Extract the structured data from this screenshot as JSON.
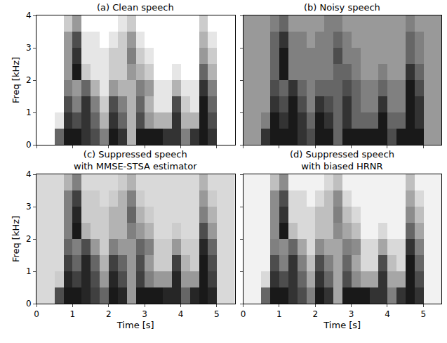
{
  "chart_data": [
    {
      "type": "heatmap",
      "title": "(a) Clean speech",
      "ylabel": "Freq [kHz]",
      "tick_labels": "y",
      "color": "#000000",
      "xlim": [
        0,
        5.5
      ],
      "xticks": [
        0,
        1,
        2,
        3,
        4,
        5
      ],
      "ylim": [
        0,
        4
      ],
      "yticks": [
        0,
        1,
        2,
        3,
        4
      ],
      "zlim": [
        0,
        1
      ],
      "x": [
        0.125,
        0.375,
        0.625,
        0.875,
        1.125,
        1.375,
        1.625,
        1.875,
        2.125,
        2.375,
        2.625,
        2.875,
        3.125,
        3.375,
        3.625,
        3.875,
        4.125,
        4.375,
        4.625,
        4.875,
        5.125,
        5.375
      ],
      "y": [
        0.25,
        0.75,
        1.25,
        1.75,
        2.25,
        2.75,
        3.25,
        3.75
      ],
      "cells": [
        [
          0,
          0,
          0.6,
          0.9,
          0.9,
          0.8,
          0.7,
          0.5,
          0.9,
          0.8,
          0.3,
          0.9,
          0.9,
          0.9,
          0.8,
          0.8,
          0.5,
          0.8,
          0.9,
          0.8,
          0,
          0
        ],
        [
          0,
          0,
          0.1,
          0.8,
          0.7,
          0.8,
          0.6,
          0.3,
          0.8,
          0.6,
          0.3,
          0.7,
          0.4,
          0.3,
          0.3,
          0.8,
          0.3,
          0.3,
          0.9,
          0.7,
          0,
          0
        ],
        [
          0,
          0,
          0,
          0.7,
          0.5,
          0.8,
          0.5,
          0.2,
          0.7,
          0.5,
          0.3,
          0.6,
          0.3,
          0.1,
          0.1,
          0.7,
          0.2,
          0.1,
          0.9,
          0.6,
          0,
          0
        ],
        [
          0,
          0,
          0,
          0.5,
          0.4,
          0.6,
          0.3,
          0.1,
          0.4,
          0.3,
          0.3,
          0.5,
          0.4,
          0.1,
          0.1,
          0.3,
          0.1,
          0.1,
          0.8,
          0.5,
          0,
          0
        ],
        [
          0,
          0,
          0,
          0.4,
          0.9,
          0.2,
          0.1,
          0.1,
          0.2,
          0.2,
          0.4,
          0.3,
          0.2,
          0,
          0,
          0.1,
          0,
          0,
          0.6,
          0.3,
          0,
          0
        ],
        [
          0,
          0,
          0,
          0.4,
          0.8,
          0.1,
          0.1,
          0.1,
          0.2,
          0.2,
          0.5,
          0.2,
          0.1,
          0,
          0,
          0,
          0,
          0,
          0.4,
          0.2,
          0,
          0
        ],
        [
          0,
          0,
          0,
          0.4,
          0.7,
          0.1,
          0.1,
          0,
          0.1,
          0.2,
          0.4,
          0.1,
          0,
          0,
          0,
          0,
          0,
          0,
          0.3,
          0.1,
          0,
          0
        ],
        [
          0,
          0,
          0,
          0.2,
          0.4,
          0,
          0,
          0,
          0,
          0.1,
          0.2,
          0,
          0,
          0,
          0,
          0,
          0,
          0,
          0.2,
          0,
          0,
          0
        ]
      ]
    },
    {
      "type": "heatmap",
      "title": "(b) Noisy speech",
      "tick_labels": false,
      "color": "#000000",
      "xlim": [
        0,
        5.5
      ],
      "xticks": [
        0,
        1,
        2,
        3,
        4,
        5
      ],
      "ylim": [
        0,
        4
      ],
      "yticks": [
        0,
        1,
        2,
        3,
        4
      ],
      "zlim": [
        0,
        1
      ],
      "x": [
        0.125,
        0.375,
        0.625,
        0.875,
        1.125,
        1.375,
        1.625,
        1.875,
        2.125,
        2.375,
        2.625,
        2.875,
        3.125,
        3.375,
        3.625,
        3.875,
        4.125,
        4.375,
        4.625,
        4.875,
        5.125,
        5.375
      ],
      "y": [
        0.25,
        0.75,
        1.25,
        1.75,
        2.25,
        2.75,
        3.25,
        3.75
      ],
      "cells": [
        [
          0.4,
          0.4,
          0.8,
          0.9,
          0.9,
          0.9,
          0.8,
          0.7,
          0.9,
          0.9,
          0.6,
          0.9,
          0.9,
          0.9,
          0.9,
          0.9,
          0.7,
          0.9,
          0.9,
          0.9,
          0.4,
          0.4
        ],
        [
          0.4,
          0.4,
          0.5,
          0.9,
          0.8,
          0.9,
          0.8,
          0.6,
          0.9,
          0.8,
          0.6,
          0.8,
          0.6,
          0.6,
          0.6,
          0.9,
          0.6,
          0.6,
          0.9,
          0.8,
          0.4,
          0.4
        ],
        [
          0.4,
          0.4,
          0.4,
          0.8,
          0.7,
          0.9,
          0.7,
          0.5,
          0.8,
          0.7,
          0.6,
          0.8,
          0.6,
          0.5,
          0.5,
          0.8,
          0.5,
          0.5,
          0.9,
          0.8,
          0.4,
          0.4
        ],
        [
          0.4,
          0.4,
          0.4,
          0.7,
          0.6,
          0.8,
          0.6,
          0.5,
          0.6,
          0.6,
          0.6,
          0.7,
          0.6,
          0.5,
          0.5,
          0.6,
          0.5,
          0.5,
          0.9,
          0.7,
          0.4,
          0.4
        ],
        [
          0.4,
          0.4,
          0.4,
          0.6,
          0.9,
          0.5,
          0.5,
          0.5,
          0.5,
          0.5,
          0.6,
          0.6,
          0.5,
          0.4,
          0.4,
          0.5,
          0.4,
          0.4,
          0.8,
          0.6,
          0.4,
          0.4
        ],
        [
          0.4,
          0.4,
          0.4,
          0.6,
          0.9,
          0.5,
          0.5,
          0.5,
          0.5,
          0.5,
          0.7,
          0.5,
          0.5,
          0.4,
          0.4,
          0.4,
          0.4,
          0.4,
          0.6,
          0.5,
          0.4,
          0.4
        ],
        [
          0.4,
          0.4,
          0.4,
          0.6,
          0.8,
          0.5,
          0.5,
          0.4,
          0.5,
          0.5,
          0.6,
          0.5,
          0.4,
          0.4,
          0.4,
          0.4,
          0.4,
          0.4,
          0.6,
          0.5,
          0.4,
          0.4
        ],
        [
          0.4,
          0.4,
          0.4,
          0.5,
          0.6,
          0.4,
          0.4,
          0.4,
          0.4,
          0.5,
          0.5,
          0.4,
          0.4,
          0.4,
          0.4,
          0.4,
          0.4,
          0.4,
          0.5,
          0.4,
          0.4,
          0.4
        ]
      ]
    },
    {
      "type": "heatmap",
      "title": "(c) Suppressed speech\nwith MMSE-STSA estimator",
      "xlabel": "Time [s]",
      "ylabel": "Freq [kHz]",
      "color": "#000000",
      "xlim": [
        0,
        5.5
      ],
      "xticks": [
        0,
        1,
        2,
        3,
        4,
        5
      ],
      "ylim": [
        0,
        4
      ],
      "yticks": [
        0,
        1,
        2,
        3,
        4
      ],
      "zlim": [
        0,
        1
      ],
      "x": [
        0.125,
        0.375,
        0.625,
        0.875,
        1.125,
        1.375,
        1.625,
        1.875,
        2.125,
        2.375,
        2.625,
        2.875,
        3.125,
        3.375,
        3.625,
        3.875,
        4.125,
        4.375,
        4.625,
        4.875,
        5.125,
        5.375
      ],
      "y": [
        0.25,
        0.75,
        1.25,
        1.75,
        2.25,
        2.75,
        3.25,
        3.75
      ],
      "cells": [
        [
          0.15,
          0.15,
          0.7,
          0.9,
          0.9,
          0.85,
          0.75,
          0.6,
          0.9,
          0.85,
          0.4,
          0.9,
          0.9,
          0.9,
          0.85,
          0.85,
          0.6,
          0.85,
          0.9,
          0.85,
          0.15,
          0.15
        ],
        [
          0.15,
          0.15,
          0.2,
          0.85,
          0.75,
          0.85,
          0.7,
          0.4,
          0.85,
          0.7,
          0.4,
          0.75,
          0.5,
          0.4,
          0.4,
          0.85,
          0.4,
          0.4,
          0.9,
          0.75,
          0.15,
          0.15
        ],
        [
          0.15,
          0.15,
          0.15,
          0.75,
          0.6,
          0.85,
          0.6,
          0.3,
          0.75,
          0.6,
          0.4,
          0.7,
          0.4,
          0.2,
          0.2,
          0.75,
          0.3,
          0.2,
          0.9,
          0.7,
          0.15,
          0.15
        ],
        [
          0.15,
          0.15,
          0.15,
          0.6,
          0.5,
          0.7,
          0.4,
          0.2,
          0.5,
          0.4,
          0.4,
          0.6,
          0.5,
          0.2,
          0.2,
          0.4,
          0.2,
          0.2,
          0.85,
          0.6,
          0.15,
          0.15
        ],
        [
          0.15,
          0.15,
          0.15,
          0.5,
          0.9,
          0.3,
          0.2,
          0.2,
          0.3,
          0.3,
          0.5,
          0.4,
          0.3,
          0.15,
          0.15,
          0.2,
          0.15,
          0.15,
          0.7,
          0.4,
          0.15,
          0.15
        ],
        [
          0.15,
          0.15,
          0.15,
          0.5,
          0.85,
          0.2,
          0.2,
          0.2,
          0.3,
          0.3,
          0.6,
          0.3,
          0.2,
          0.15,
          0.15,
          0.15,
          0.15,
          0.15,
          0.5,
          0.3,
          0.15,
          0.15
        ],
        [
          0.15,
          0.15,
          0.15,
          0.5,
          0.75,
          0.2,
          0.2,
          0.15,
          0.2,
          0.3,
          0.5,
          0.2,
          0.15,
          0.15,
          0.15,
          0.15,
          0.15,
          0.15,
          0.4,
          0.2,
          0.15,
          0.15
        ],
        [
          0.15,
          0.15,
          0.15,
          0.3,
          0.5,
          0.15,
          0.15,
          0.15,
          0.15,
          0.2,
          0.3,
          0.15,
          0.15,
          0.15,
          0.15,
          0.15,
          0.15,
          0.15,
          0.3,
          0.15,
          0.15,
          0.15
        ]
      ]
    },
    {
      "type": "heatmap",
      "title": "(d) Suppressed speech\nwith biased HRNR",
      "xlabel": "Time [s]",
      "tick_labels": "x",
      "color": "#000000",
      "xlim": [
        0,
        5.5
      ],
      "xticks": [
        0,
        1,
        2,
        3,
        4,
        5
      ],
      "ylim": [
        0,
        4
      ],
      "yticks": [
        0,
        1,
        2,
        3,
        4
      ],
      "zlim": [
        0,
        1
      ],
      "x": [
        0.125,
        0.375,
        0.625,
        0.875,
        1.125,
        1.375,
        1.625,
        1.875,
        2.125,
        2.375,
        2.625,
        2.875,
        3.125,
        3.375,
        3.625,
        3.875,
        4.125,
        4.375,
        4.625,
        4.875,
        5.125,
        5.375
      ],
      "y": [
        0.25,
        0.75,
        1.25,
        1.75,
        2.25,
        2.75,
        3.25,
        3.75
      ],
      "cells": [
        [
          0.05,
          0.05,
          0.6,
          0.9,
          0.9,
          0.8,
          0.7,
          0.5,
          0.9,
          0.8,
          0.35,
          0.9,
          0.9,
          0.9,
          0.8,
          0.8,
          0.5,
          0.8,
          0.9,
          0.8,
          0.05,
          0.05
        ],
        [
          0.05,
          0.05,
          0.15,
          0.8,
          0.7,
          0.8,
          0.6,
          0.35,
          0.8,
          0.6,
          0.35,
          0.7,
          0.45,
          0.35,
          0.35,
          0.8,
          0.35,
          0.35,
          0.9,
          0.7,
          0.05,
          0.05
        ],
        [
          0.05,
          0.05,
          0.05,
          0.7,
          0.5,
          0.8,
          0.5,
          0.25,
          0.7,
          0.5,
          0.35,
          0.6,
          0.35,
          0.15,
          0.15,
          0.7,
          0.25,
          0.15,
          0.9,
          0.6,
          0.05,
          0.05
        ],
        [
          0.05,
          0.05,
          0.05,
          0.5,
          0.45,
          0.6,
          0.35,
          0.15,
          0.45,
          0.35,
          0.35,
          0.5,
          0.45,
          0.15,
          0.15,
          0.35,
          0.15,
          0.15,
          0.8,
          0.5,
          0.05,
          0.05
        ],
        [
          0.05,
          0.05,
          0.05,
          0.45,
          0.9,
          0.25,
          0.15,
          0.15,
          0.25,
          0.25,
          0.45,
          0.35,
          0.25,
          0.05,
          0.05,
          0.15,
          0.05,
          0.05,
          0.6,
          0.35,
          0.05,
          0.05
        ],
        [
          0.05,
          0.05,
          0.05,
          0.45,
          0.8,
          0.15,
          0.15,
          0.15,
          0.25,
          0.25,
          0.5,
          0.25,
          0.15,
          0.05,
          0.05,
          0.05,
          0.05,
          0.05,
          0.45,
          0.25,
          0.05,
          0.05
        ],
        [
          0.05,
          0.05,
          0.05,
          0.45,
          0.7,
          0.15,
          0.15,
          0.05,
          0.15,
          0.25,
          0.45,
          0.15,
          0.05,
          0.05,
          0.05,
          0.05,
          0.05,
          0.05,
          0.35,
          0.15,
          0.05,
          0.05
        ],
        [
          0.05,
          0.05,
          0.05,
          0.25,
          0.45,
          0.05,
          0.05,
          0.05,
          0.05,
          0.15,
          0.25,
          0.05,
          0.05,
          0.05,
          0.05,
          0.05,
          0.05,
          0.05,
          0.25,
          0.05,
          0.05,
          0.05
        ]
      ]
    }
  ]
}
